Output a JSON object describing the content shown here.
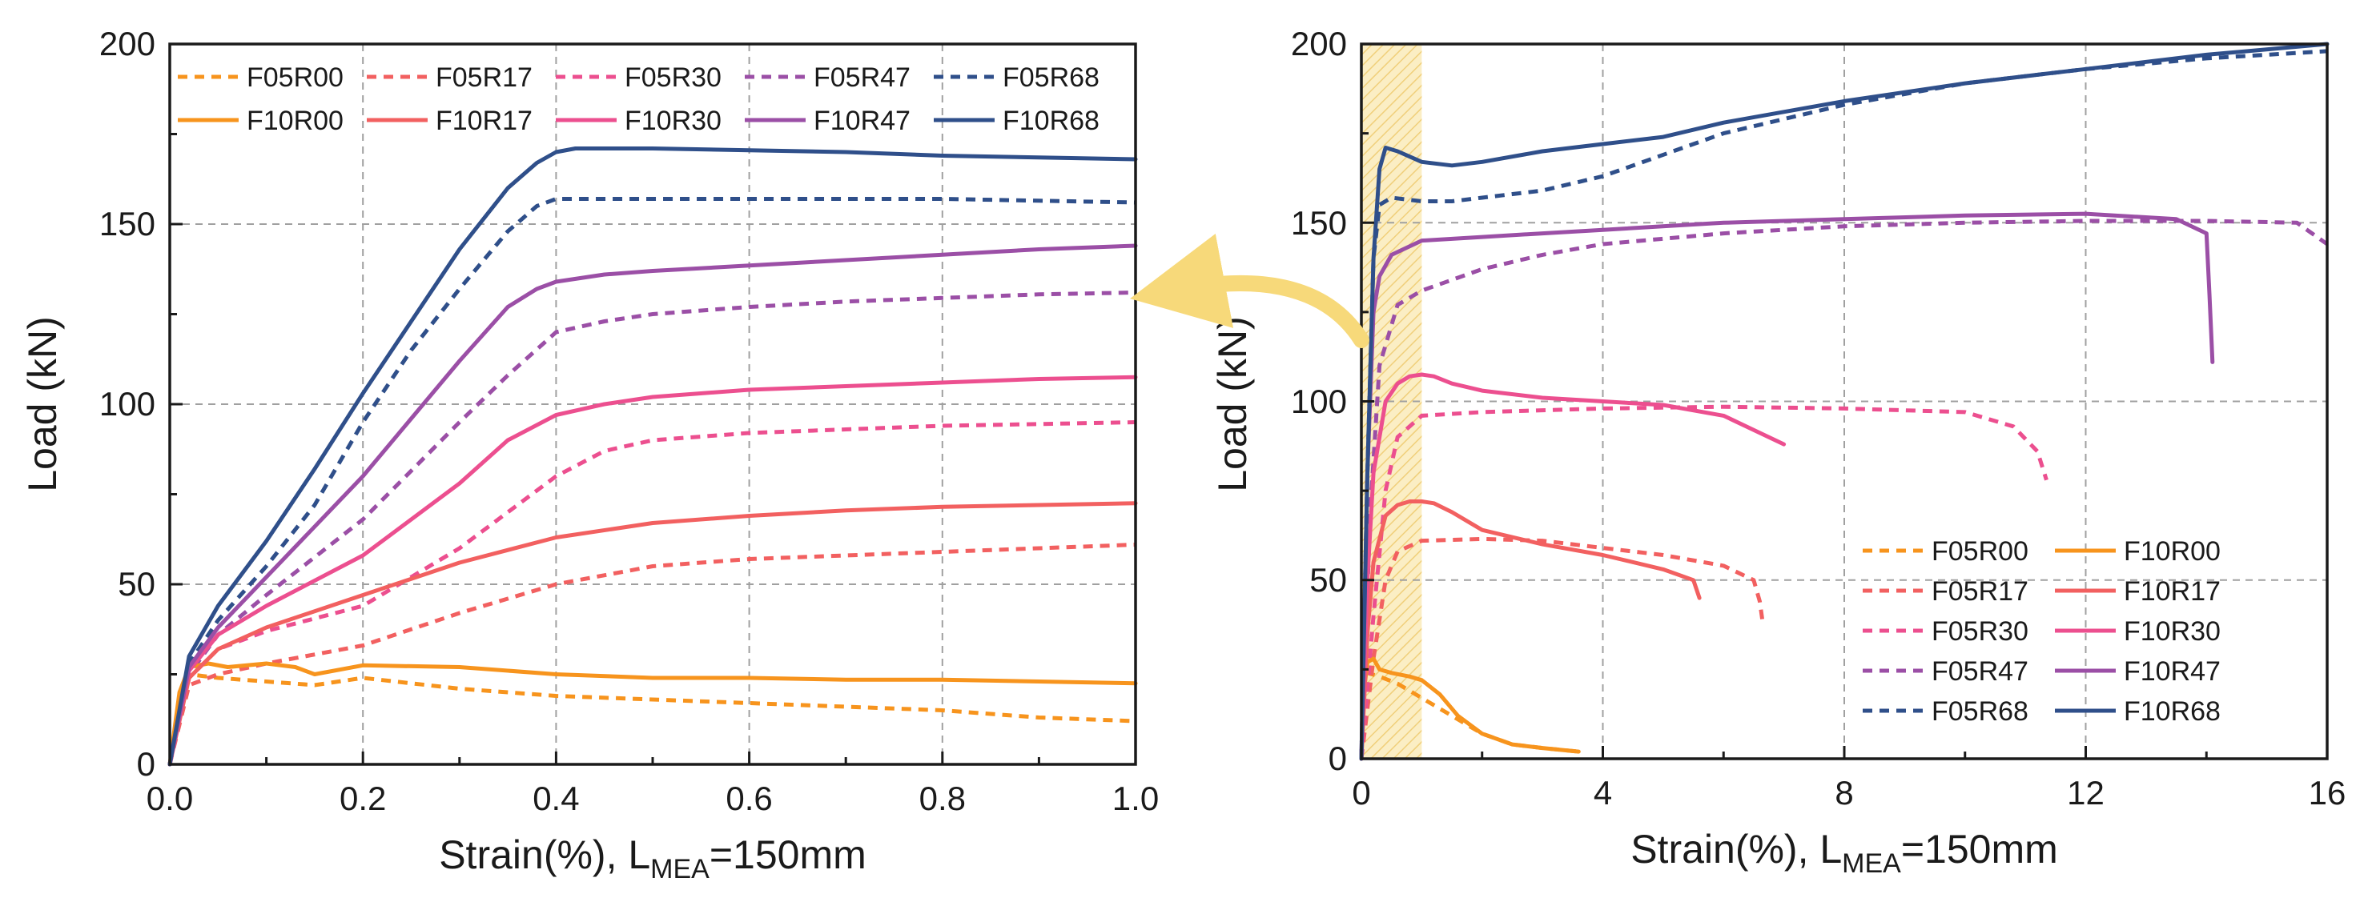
{
  "colors": {
    "R00": "#f7941d",
    "R17": "#f26060",
    "R30": "#ec4f8f",
    "R47": "#9b4fa6",
    "R68": "#2f4f8a",
    "arrow": "#f7d97a",
    "band": "#f5d98c"
  },
  "chart_data": [
    {
      "id": "left",
      "type": "line",
      "xlabel": "Strain(%), L",
      "xlabel_sub": "MEA",
      "xlabel_tail": "=150mm",
      "ylabel": "Load (kN)",
      "xlim": [
        0,
        1
      ],
      "ylim": [
        0,
        200
      ],
      "xticks": [
        0.0,
        0.2,
        0.4,
        0.6,
        0.8,
        1.0
      ],
      "xtick_labels": [
        "0.0",
        "0.2",
        "0.4",
        "0.6",
        "0.8",
        "1.0"
      ],
      "yticks": [
        0,
        50,
        100,
        150,
        200
      ],
      "ytick_labels": [
        "0",
        "50",
        "100",
        "150",
        "200"
      ],
      "grid": true,
      "legend_position": "top",
      "legend_rows": [
        [
          "F05R00",
          "F05R17",
          "F05R30",
          "F05R47",
          "F05R68"
        ],
        [
          "F10R00",
          "F10R17",
          "F10R30",
          "F10R47",
          "F10R68"
        ]
      ],
      "series": [
        {
          "name": "F05R00",
          "color_key": "R00",
          "dashed": true,
          "x": [
            0,
            0.01,
            0.02,
            0.05,
            0.1,
            0.15,
            0.2,
            0.3,
            0.4,
            0.5,
            0.6,
            0.7,
            0.8,
            0.9,
            1.0
          ],
          "y": [
            0,
            18,
            25,
            24,
            23,
            22,
            24,
            21,
            19,
            18,
            17,
            16,
            15,
            13,
            12
          ]
        },
        {
          "name": "F05R17",
          "color_key": "R17",
          "dashed": true,
          "x": [
            0,
            0.02,
            0.05,
            0.1,
            0.2,
            0.3,
            0.4,
            0.5,
            0.6,
            0.7,
            0.8,
            0.9,
            1.0
          ],
          "y": [
            0,
            22,
            25,
            28,
            33,
            42,
            50,
            55,
            57,
            58,
            59,
            60,
            61
          ]
        },
        {
          "name": "F05R30",
          "color_key": "R30",
          "dashed": true,
          "x": [
            0,
            0.02,
            0.05,
            0.1,
            0.2,
            0.3,
            0.4,
            0.45,
            0.5,
            0.6,
            0.7,
            0.8,
            0.9,
            1.0
          ],
          "y": [
            0,
            24,
            32,
            37,
            44,
            60,
            80,
            87,
            90,
            92,
            93,
            94,
            94.5,
            95
          ]
        },
        {
          "name": "F05R47",
          "color_key": "R47",
          "dashed": true,
          "x": [
            0,
            0.02,
            0.05,
            0.1,
            0.2,
            0.3,
            0.35,
            0.4,
            0.45,
            0.5,
            0.6,
            0.7,
            0.8,
            0.9,
            1.0
          ],
          "y": [
            0,
            25,
            36,
            47,
            68,
            95,
            108,
            120,
            123,
            125,
            127,
            128.5,
            129.5,
            130.5,
            131
          ]
        },
        {
          "name": "F05R68",
          "color_key": "R68",
          "dashed": true,
          "x": [
            0,
            0.02,
            0.05,
            0.1,
            0.15,
            0.2,
            0.25,
            0.3,
            0.35,
            0.38,
            0.4,
            0.5,
            0.6,
            0.7,
            0.8,
            0.9,
            1.0
          ],
          "y": [
            0,
            28,
            40,
            55,
            72,
            95,
            115,
            132,
            148,
            155,
            157,
            157,
            157,
            157,
            157,
            156.5,
            156
          ]
        },
        {
          "name": "F10R00",
          "color_key": "R00",
          "dashed": false,
          "x": [
            0,
            0.01,
            0.02,
            0.04,
            0.06,
            0.1,
            0.13,
            0.15,
            0.2,
            0.3,
            0.4,
            0.5,
            0.6,
            0.7,
            0.8,
            0.9,
            1.0
          ],
          "y": [
            0,
            20,
            27,
            28,
            27,
            28,
            27,
            25,
            27.5,
            27,
            25,
            24,
            24,
            23.5,
            23.5,
            23,
            22.5
          ]
        },
        {
          "name": "F10R17",
          "color_key": "R17",
          "dashed": false,
          "x": [
            0,
            0.02,
            0.05,
            0.1,
            0.2,
            0.3,
            0.4,
            0.5,
            0.6,
            0.7,
            0.8,
            0.9,
            1.0
          ],
          "y": [
            0,
            24,
            32,
            38,
            47,
            56,
            63,
            67,
            69,
            70.5,
            71.5,
            72,
            72.5
          ]
        },
        {
          "name": "F10R30",
          "color_key": "R30",
          "dashed": false,
          "x": [
            0,
            0.02,
            0.05,
            0.1,
            0.2,
            0.3,
            0.35,
            0.4,
            0.45,
            0.5,
            0.6,
            0.7,
            0.8,
            0.9,
            1.0
          ],
          "y": [
            0,
            26,
            36,
            44,
            58,
            78,
            90,
            97,
            100,
            102,
            104,
            105,
            106,
            107,
            107.5
          ]
        },
        {
          "name": "F10R47",
          "color_key": "R47",
          "dashed": false,
          "x": [
            0,
            0.02,
            0.05,
            0.1,
            0.2,
            0.3,
            0.35,
            0.38,
            0.4,
            0.45,
            0.5,
            0.6,
            0.7,
            0.8,
            0.9,
            1.0
          ],
          "y": [
            0,
            27,
            38,
            52,
            80,
            112,
            127,
            132,
            134,
            136,
            137,
            138.5,
            140,
            141.5,
            143,
            144
          ]
        },
        {
          "name": "F10R68",
          "color_key": "R68",
          "dashed": false,
          "x": [
            0,
            0.02,
            0.05,
            0.1,
            0.15,
            0.2,
            0.25,
            0.3,
            0.35,
            0.38,
            0.4,
            0.42,
            0.5,
            0.6,
            0.7,
            0.8,
            0.9,
            1.0
          ],
          "y": [
            0,
            30,
            44,
            62,
            82,
            103,
            123,
            143,
            160,
            167,
            170,
            171,
            171,
            170.5,
            170,
            169,
            168.5,
            168
          ]
        }
      ]
    },
    {
      "id": "right",
      "type": "line",
      "xlabel": "Strain(%), L",
      "xlabel_sub": "MEA",
      "xlabel_tail": "=150mm",
      "ylabel": "Load (kN)",
      "xlim": [
        0,
        16
      ],
      "ylim": [
        0,
        200
      ],
      "xticks": [
        0,
        4,
        8,
        12,
        16
      ],
      "xtick_labels": [
        "0",
        "4",
        "8",
        "12",
        "16"
      ],
      "yticks": [
        0,
        50,
        100,
        150,
        200
      ],
      "ytick_labels": [
        "0",
        "50",
        "100",
        "150",
        "200"
      ],
      "grid": true,
      "highlight_band_x": [
        0,
        1
      ],
      "legend_position": "bottom-right",
      "legend_rows": [
        [
          "F05R00",
          "F10R00"
        ],
        [
          "F05R17",
          "F10R17"
        ],
        [
          "F05R30",
          "F10R30"
        ],
        [
          "F05R47",
          "F10R47"
        ],
        [
          "F05R68",
          "F10R68"
        ]
      ],
      "series": [
        {
          "name": "F05R00",
          "color_key": "R00",
          "dashed": true,
          "x": [
            0,
            0.1,
            0.3,
            0.6,
            1.0,
            1.5,
            2.0,
            2.5,
            3.0,
            3.6
          ],
          "y": [
            0,
            24,
            23,
            21,
            17,
            12,
            7,
            4,
            3,
            2
          ]
        },
        {
          "name": "F05R17",
          "color_key": "R17",
          "dashed": true,
          "x": [
            0,
            0.2,
            0.4,
            0.6,
            1.0,
            2.0,
            3.0,
            4.0,
            5.0,
            6.0,
            6.5,
            6.6,
            6.65
          ],
          "y": [
            0,
            28,
            50,
            58,
            61,
            61.5,
            61,
            59,
            57,
            54,
            50,
            44,
            38
          ]
        },
        {
          "name": "F05R30",
          "color_key": "R30",
          "dashed": true,
          "x": [
            0,
            0.2,
            0.4,
            0.6,
            1.0,
            2.0,
            4.0,
            6.0,
            8.0,
            10.0,
            10.8,
            11.2,
            11.35
          ],
          "y": [
            0,
            40,
            75,
            90,
            96,
            97,
            98,
            98.5,
            98,
            97,
            93,
            86,
            78
          ]
        },
        {
          "name": "F05R47",
          "color_key": "R47",
          "dashed": true,
          "x": [
            0,
            0.15,
            0.3,
            0.6,
            1.0,
            2.0,
            3.0,
            4.0,
            6.0,
            8.0,
            10.0,
            12.0,
            14.0,
            15.5,
            16.0
          ],
          "y": [
            0,
            70,
            110,
            127,
            131,
            137,
            141,
            144,
            147,
            149,
            150,
            150.5,
            150.5,
            150,
            144
          ]
        },
        {
          "name": "F05R68",
          "color_key": "R68",
          "dashed": true,
          "x": [
            0,
            0.1,
            0.2,
            0.3,
            0.5,
            1.0,
            1.5,
            2.0,
            3.0,
            4.0,
            6.0,
            8.0,
            10.0,
            12.0,
            14.0,
            16.0
          ],
          "y": [
            0,
            80,
            140,
            155,
            157,
            156,
            156,
            157,
            159,
            163,
            175,
            183,
            189,
            193,
            196,
            198
          ]
        },
        {
          "name": "F10R00",
          "color_key": "R00",
          "dashed": false,
          "x": [
            0,
            0.05,
            0.1,
            0.2,
            0.3,
            0.5,
            0.8,
            1.0,
            1.3,
            1.6,
            2.0,
            2.5,
            3.0,
            3.6
          ],
          "y": [
            0,
            20,
            27,
            28,
            25,
            24,
            23,
            22,
            18,
            12,
            7,
            4,
            3,
            2
          ]
        },
        {
          "name": "F10R17",
          "color_key": "R17",
          "dashed": false,
          "x": [
            0,
            0.1,
            0.2,
            0.4,
            0.6,
            0.8,
            1.0,
            1.2,
            1.5,
            2.0,
            3.0,
            4.0,
            5.0,
            5.5,
            5.6
          ],
          "y": [
            0,
            35,
            55,
            68,
            71,
            72,
            72,
            71.5,
            69,
            64,
            60,
            57,
            53,
            50,
            45
          ]
        },
        {
          "name": "F10R30",
          "color_key": "R30",
          "dashed": false,
          "x": [
            0,
            0.1,
            0.2,
            0.4,
            0.6,
            0.8,
            1.0,
            1.2,
            1.5,
            2.0,
            3.0,
            4.0,
            5.0,
            6.0,
            6.5,
            7.0
          ],
          "y": [
            0,
            50,
            80,
            100,
            105,
            107,
            107.5,
            107,
            105,
            103,
            101,
            100,
            99,
            96,
            92,
            88
          ]
        },
        {
          "name": "F10R47",
          "color_key": "R47",
          "dashed": false,
          "x": [
            0,
            0.1,
            0.2,
            0.3,
            0.5,
            1.0,
            2.0,
            3.0,
            4.0,
            6.0,
            8.0,
            10.0,
            12.0,
            13.5,
            14.0,
            14.05,
            14.1
          ],
          "y": [
            0,
            80,
            125,
            135,
            141,
            145,
            146,
            147,
            148,
            150,
            151,
            152,
            152.5,
            151,
            147,
            130,
            111
          ]
        },
        {
          "name": "F10R68",
          "color_key": "R68",
          "dashed": false,
          "x": [
            0,
            0.1,
            0.2,
            0.3,
            0.4,
            0.6,
            1.0,
            1.5,
            2.0,
            3.0,
            4.0,
            5.0,
            6.0,
            8.0,
            10.0,
            12.0,
            14.0,
            16.0
          ],
          "y": [
            0,
            80,
            140,
            165,
            171,
            170,
            167,
            166,
            167,
            170,
            172,
            174,
            178,
            184,
            189,
            193,
            197,
            200
          ]
        }
      ]
    }
  ]
}
